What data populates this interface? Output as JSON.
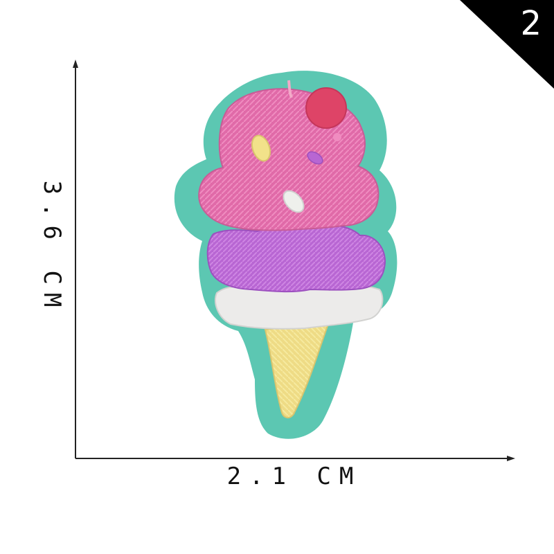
{
  "corner_badge": {
    "number": "2",
    "color": "#000000"
  },
  "dimensions": {
    "width_label": "2.1 CM",
    "height_label": "3.6 CM"
  },
  "patch": {
    "felt_color": "#5cc7b2",
    "scoop_top_color": "#e06aa8",
    "scoop_middle_color": "#b866d3",
    "cream_color": "#ecebea",
    "cone_color": "#eedb85",
    "cherry_color": "#de4467"
  }
}
